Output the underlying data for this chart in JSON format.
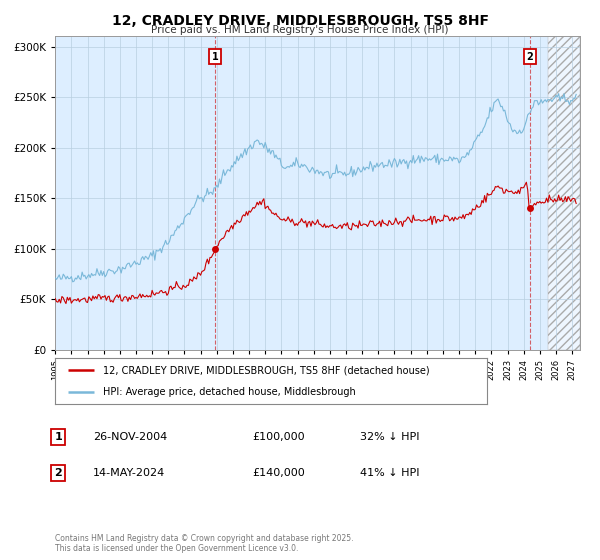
{
  "title": "12, CRADLEY DRIVE, MIDDLESBROUGH, TS5 8HF",
  "subtitle": "Price paid vs. HM Land Registry's House Price Index (HPI)",
  "hpi_color": "#7ab8d9",
  "price_color": "#cc0000",
  "background_color": "#ffffff",
  "plot_bg_color": "#ddeeff",
  "grid_color": "#b8cfe0",
  "ylim": [
    0,
    310000
  ],
  "yticks": [
    0,
    50000,
    100000,
    150000,
    200000,
    250000,
    300000
  ],
  "xlim_start": 1995.0,
  "xlim_end": 2027.5,
  "hatch_start": 2025.5,
  "event1_x": 2004.917,
  "event1_y": 100000,
  "event2_x": 2024.37,
  "event2_y": 140000,
  "event1_date": "26-NOV-2004",
  "event1_price": "£100,000",
  "event1_hpi": "32% ↓ HPI",
  "event2_date": "14-MAY-2024",
  "event2_price": "£140,000",
  "event2_hpi": "41% ↓ HPI",
  "legend_label1": "12, CRADLEY DRIVE, MIDDLESBROUGH, TS5 8HF (detached house)",
  "legend_label2": "HPI: Average price, detached house, Middlesbrough",
  "footer": "Contains HM Land Registry data © Crown copyright and database right 2025.\nThis data is licensed under the Open Government Licence v3.0."
}
